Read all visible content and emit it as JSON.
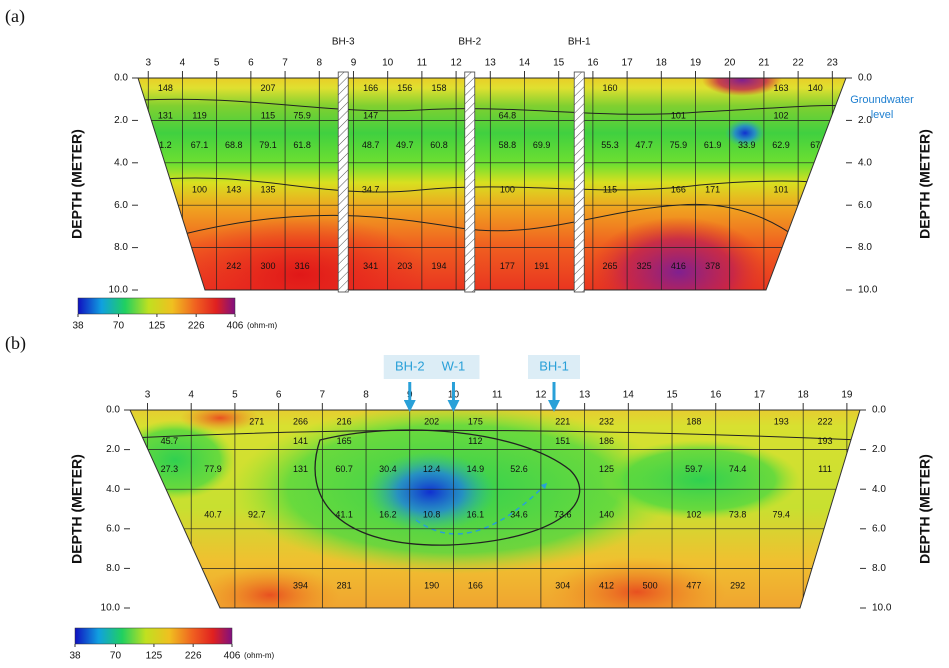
{
  "chart_data": [
    {
      "type": "contour",
      "label": "(a)",
      "xlim": [
        2.7,
        23.4
      ],
      "xticks": [
        3,
        4,
        5,
        6,
        7,
        8,
        9,
        10,
        11,
        12,
        13,
        14,
        15,
        16,
        17,
        18,
        19,
        20,
        21,
        22,
        23
      ],
      "ylim": [
        0,
        10
      ],
      "yticks": [
        {
          "value": 0,
          "label": "0.0"
        },
        {
          "value": 2,
          "label": "2.0"
        },
        {
          "value": 4,
          "label": "4.0"
        },
        {
          "value": 6,
          "label": "6.0"
        },
        {
          "value": 8,
          "label": "8.0"
        },
        {
          "value": 10,
          "label": "10.0"
        }
      ],
      "ylabel": "DEPTH (METER)",
      "grid": true,
      "boreholes": [
        {
          "label": "BH-3",
          "x": 8.7
        },
        {
          "label": "BH-2",
          "x": 12.4
        },
        {
          "label": "BH-1",
          "x": 15.6
        }
      ],
      "annotation": [
        "Groundwater",
        "level"
      ],
      "points": {
        "x": [
          3.5,
          6.5,
          9.5,
          10.5,
          11.5,
          16.5,
          21.5,
          22.5,
          3.5,
          4.5,
          6.5,
          7.5,
          9.5,
          13.5,
          18.5,
          21.5,
          3.5,
          4.5,
          5.5,
          6.5,
          7.5,
          9.5,
          10.5,
          11.5,
          13.5,
          14.5,
          16.5,
          17.5,
          18.5,
          19.5,
          20.5,
          21.5,
          22.5,
          4.5,
          5.5,
          6.5,
          9.5,
          13.5,
          16.5,
          18.5,
          19.5,
          21.5,
          5.5,
          6.5,
          7.5,
          9.5,
          10.5,
          11.5,
          13.5,
          14.5,
          16.5,
          17.5,
          18.5,
          19.5
        ],
        "depth": [
          0.5,
          0.5,
          0.5,
          0.5,
          0.5,
          0.5,
          0.5,
          0.5,
          1.8,
          1.8,
          1.8,
          1.8,
          1.8,
          1.8,
          1.8,
          1.8,
          3.2,
          3.2,
          3.2,
          3.2,
          3.2,
          3.2,
          3.2,
          3.2,
          3.2,
          3.2,
          3.2,
          3.2,
          3.2,
          3.2,
          3.2,
          3.2,
          3.2,
          5.3,
          5.3,
          5.3,
          5.3,
          5.3,
          5.3,
          5.3,
          5.3,
          5.3,
          8.9,
          8.9,
          8.9,
          8.9,
          8.9,
          8.9,
          8.9,
          8.9,
          8.9,
          8.9,
          8.9,
          8.9
        ],
        "values": [
          148,
          207,
          166,
          156,
          158,
          160,
          163,
          140,
          131,
          119,
          115,
          75.9,
          147,
          64.8,
          101,
          102,
          1.2,
          67.1,
          68.8,
          79.1,
          61.8,
          48.7,
          49.7,
          60.8,
          58.8,
          69.9,
          55.3,
          47.7,
          75.9,
          61.9,
          33.9,
          62.9,
          67,
          100,
          143,
          135,
          34.7,
          100,
          115,
          166,
          171,
          101,
          242,
          300,
          316,
          341,
          203,
          194,
          177,
          191,
          265,
          325,
          416,
          378
        ]
      },
      "colorbar": {
        "ticks": [
          38,
          70,
          125,
          226,
          406
        ],
        "unit": "(ohm-m)",
        "log": true
      }
    },
    {
      "type": "contour",
      "label": "(b)",
      "xlim": [
        2.6,
        19.3
      ],
      "xticks": [
        3,
        4,
        5,
        6,
        7,
        8,
        9,
        10,
        11,
        12,
        13,
        14,
        15,
        16,
        17,
        18,
        19
      ],
      "ylim": [
        0,
        10
      ],
      "yticks": [
        {
          "value": 0,
          "label": "0.0"
        },
        {
          "value": 2,
          "label": "2.0"
        },
        {
          "value": 4,
          "label": "4.0"
        },
        {
          "value": 6,
          "label": "6.0"
        },
        {
          "value": 8,
          "label": "8.0"
        },
        {
          "value": 10,
          "label": "10.0"
        }
      ],
      "ylabel": "DEPTH (METER)",
      "grid": true,
      "markers": [
        {
          "label": "BH-2",
          "x": 9
        },
        {
          "label": "W-1",
          "x": 10
        },
        {
          "label": "BH-1",
          "x": 12.3
        }
      ],
      "points": {
        "x": [
          5.5,
          6.5,
          7.5,
          9.5,
          10.5,
          12.5,
          13.5,
          15.5,
          17.5,
          18.5,
          3.5,
          6.5,
          7.5,
          10.5,
          12.5,
          13.5,
          18.5,
          3.5,
          4.5,
          6.5,
          7.5,
          8.5,
          9.5,
          10.5,
          11.5,
          13.5,
          15.5,
          16.5,
          18.5,
          4.5,
          5.5,
          7.5,
          8.5,
          9.5,
          10.5,
          11.5,
          12.5,
          13.5,
          15.5,
          16.5,
          17.5,
          6.5,
          7.5,
          9.5,
          10.5,
          12.5,
          13.5,
          14.5,
          15.5,
          16.5
        ],
        "depth": [
          0.6,
          0.6,
          0.6,
          0.6,
          0.6,
          0.6,
          0.6,
          0.6,
          0.6,
          0.6,
          1.6,
          1.6,
          1.6,
          1.6,
          1.6,
          1.6,
          1.6,
          3,
          3,
          3,
          3,
          3,
          3,
          3,
          3,
          3,
          3,
          3,
          3,
          5.3,
          5.3,
          5.3,
          5.3,
          5.3,
          5.3,
          5.3,
          5.3,
          5.3,
          5.3,
          5.3,
          5.3,
          8.9,
          8.9,
          8.9,
          8.9,
          8.9,
          8.9,
          8.9,
          8.9,
          8.9
        ],
        "values": [
          271,
          266,
          216,
          202,
          175,
          221,
          232,
          188,
          193,
          222,
          45.7,
          141,
          165,
          112,
          151,
          186,
          193,
          27.3,
          77.9,
          131,
          60.7,
          30.4,
          12.4,
          14.9,
          52.6,
          125,
          59.7,
          74.4,
          111,
          40.7,
          92.7,
          41.1,
          16.2,
          10.8,
          16.1,
          34.6,
          73.6,
          140,
          102,
          73.8,
          79.4,
          394,
          281,
          190,
          166,
          304,
          412,
          500,
          477,
          292
        ]
      },
      "colorbar": {
        "ticks": [
          38,
          70,
          125,
          226,
          406
        ],
        "unit": "(ohm-m)",
        "log": true
      }
    }
  ]
}
